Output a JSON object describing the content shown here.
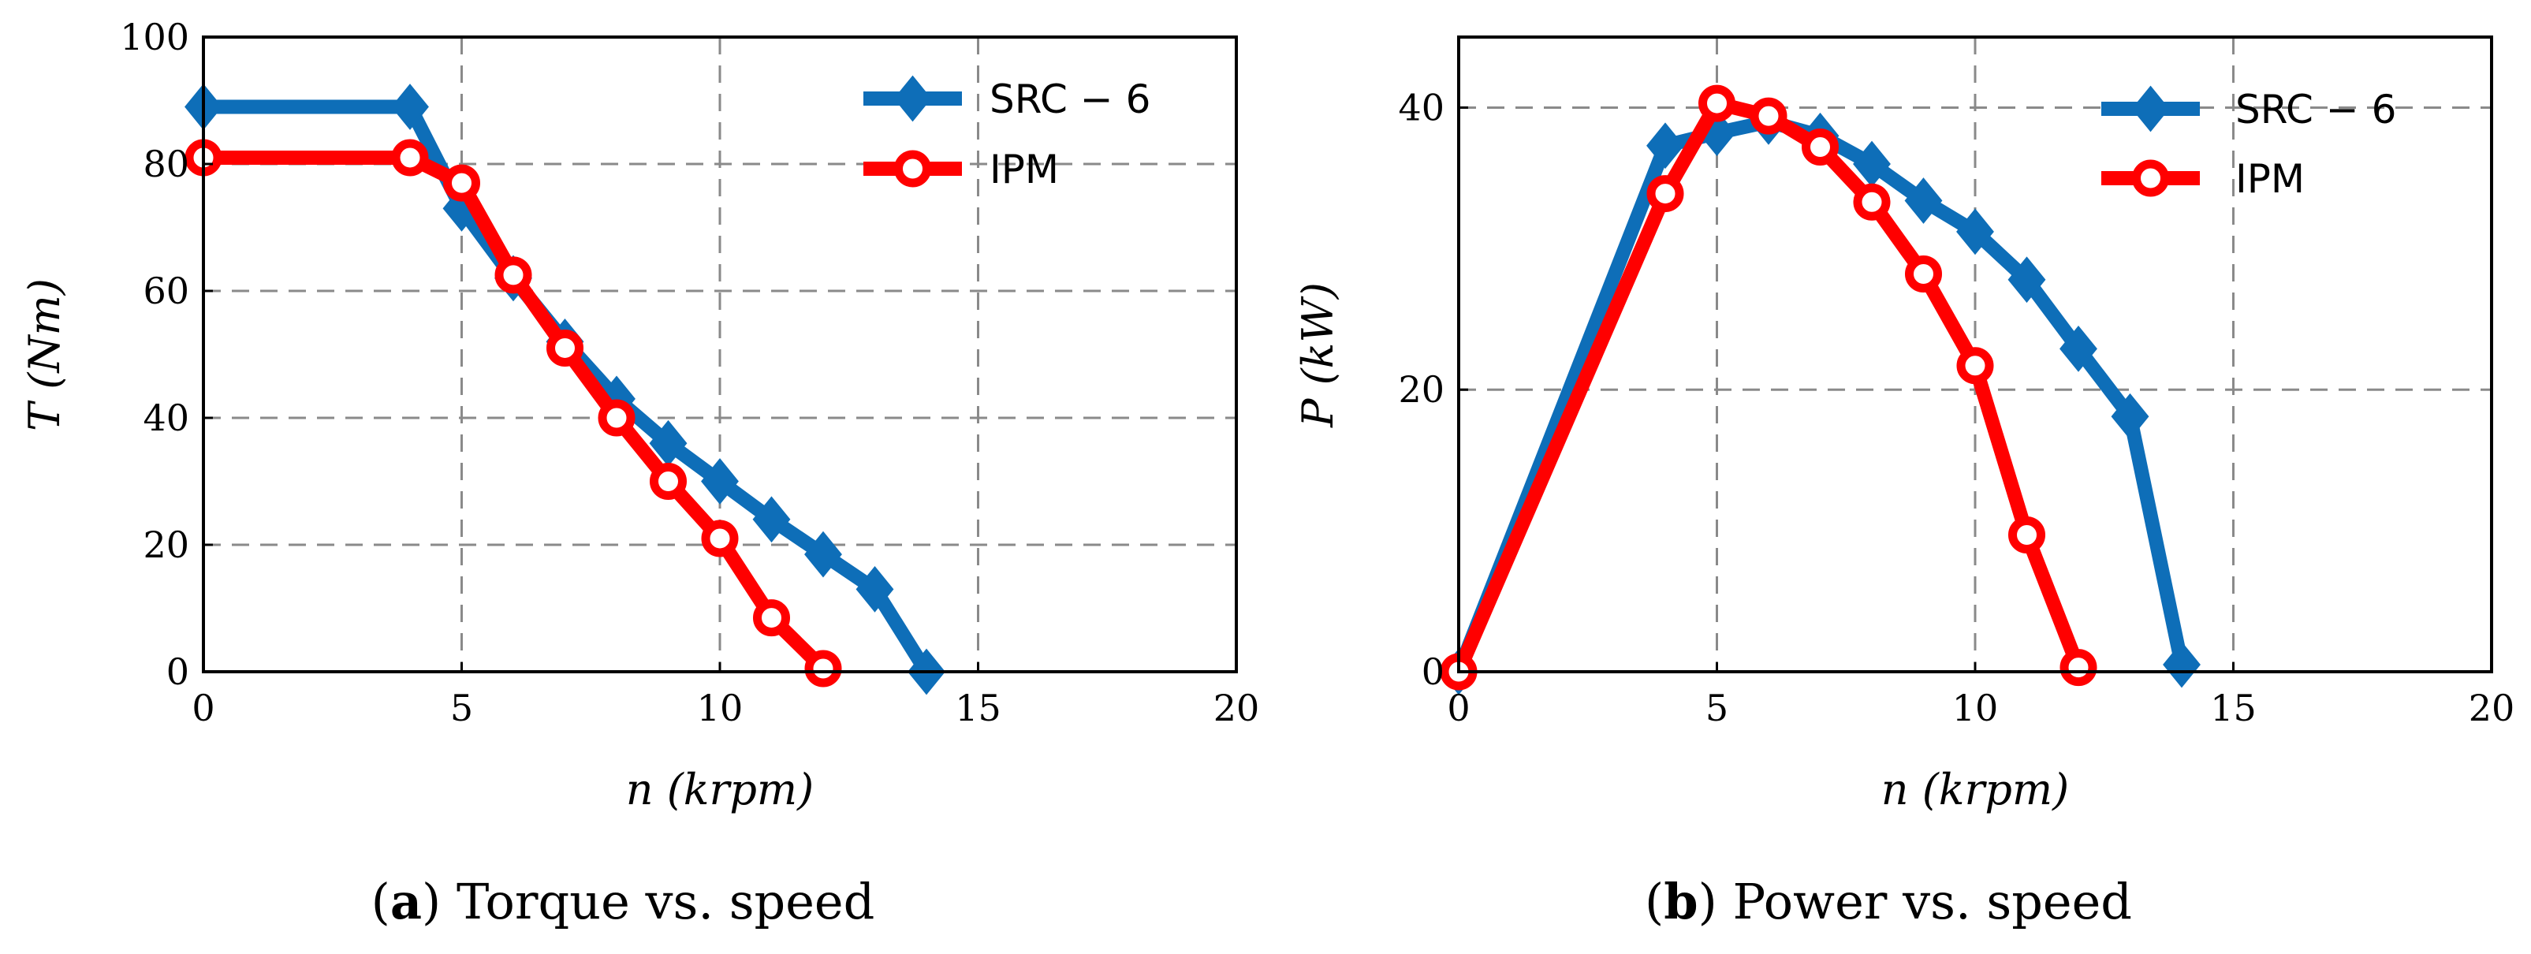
{
  "colors": {
    "src": "#0E6EB8",
    "ipm": "#FF0000",
    "grid": "#8A8A8A"
  },
  "chart_data": [
    {
      "type": "line",
      "caption_letter": "a",
      "caption_text": "Torque vs. speed",
      "xlabel": "n (krpm)",
      "ylabel": "T (Nm)",
      "xlim": [
        0,
        20
      ],
      "ylim": [
        0,
        100
      ],
      "xticks": [
        "0",
        "5",
        "10",
        "15",
        "20"
      ],
      "yticks": [
        "0",
        "20",
        "40",
        "60",
        "80",
        "100"
      ],
      "grid": true,
      "legend_position": "top-right",
      "series": [
        {
          "name": "SRC − 6",
          "marker": "diamond",
          "x": [
            0,
            4,
            5,
            6,
            7,
            8,
            9,
            10,
            11,
            12,
            13,
            14
          ],
          "y": [
            89,
            89,
            73,
            62,
            52,
            43,
            36,
            30,
            24,
            18.5,
            13,
            0
          ]
        },
        {
          "name": "IPM",
          "marker": "circle",
          "x": [
            0,
            4,
            5,
            6,
            7,
            8,
            9,
            10,
            11,
            12
          ],
          "y": [
            81,
            81,
            77,
            62.5,
            51,
            40,
            30,
            21,
            8.5,
            0.5
          ]
        }
      ]
    },
    {
      "type": "line",
      "caption_letter": "b",
      "caption_text": "Power vs. speed",
      "xlabel": "n (krpm)",
      "ylabel": "P (kW)",
      "xlim": [
        0,
        20
      ],
      "ylim": [
        0,
        45
      ],
      "xticks": [
        "0",
        "5",
        "10",
        "15",
        "20"
      ],
      "yticks": [
        "0",
        "20",
        "40"
      ],
      "grid": true,
      "legend_position": "top-right",
      "series": [
        {
          "name": "SRC − 6",
          "marker": "diamond",
          "x": [
            0,
            4,
            5,
            6,
            7,
            8,
            9,
            10,
            11,
            12,
            13,
            14
          ],
          "y": [
            0,
            37.3,
            38.2,
            39,
            38,
            36,
            33.4,
            31.2,
            27.8,
            22.9,
            18.1,
            0.5
          ]
        },
        {
          "name": "IPM",
          "marker": "circle",
          "x": [
            0,
            4,
            5,
            6,
            7,
            8,
            9,
            10,
            11,
            12
          ],
          "y": [
            0,
            33.9,
            40.3,
            39.4,
            37.2,
            33.3,
            28.2,
            21.7,
            9.7,
            0.3
          ]
        }
      ]
    }
  ]
}
